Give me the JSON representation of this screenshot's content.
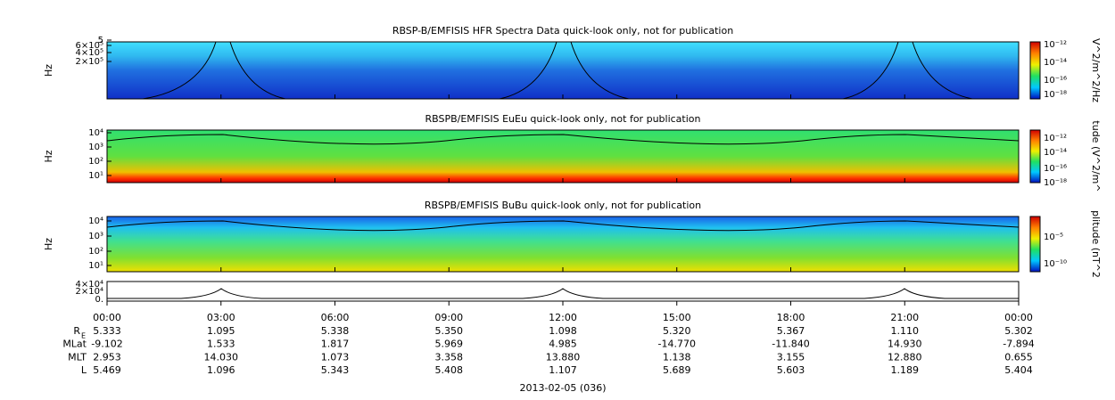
{
  "panels": [
    {
      "title": "RBSP-B/EMFISIS  HFR Spectra Data quick-look only, not for publication",
      "y_label": "Hz",
      "y_ticks": [
        "5",
        "6×10⁵",
        "4×10⁵",
        "2×10⁵"
      ],
      "colorbar_label": "V^2/m^2/Hz",
      "colorbar_ticks": [
        "10⁻¹²",
        "10⁻¹⁴",
        "10⁻¹⁶",
        "10⁻¹⁸"
      ]
    },
    {
      "title": "RBSPB/EMFISIS  EuEu quick-look only, not for publication",
      "y_label": "Hz",
      "y_ticks": [
        "10⁴",
        "10³",
        "10²",
        "10¹"
      ],
      "colorbar_label": "tude (V^2/m^",
      "colorbar_ticks": [
        "10⁻¹²",
        "10⁻¹⁴",
        "10⁻¹⁶",
        "10⁻¹⁸"
      ]
    },
    {
      "title": "RBSPB/EMFISIS  BuBu quick-look only, not for publication",
      "y_label": "Hz",
      "y_ticks": [
        "10⁴",
        "10³",
        "10²",
        "10¹"
      ],
      "colorbar_label": "plitude (nT^2",
      "colorbar_ticks": [
        "10⁻⁵",
        "10⁻¹⁰"
      ]
    }
  ],
  "line_panel": {
    "y_ticks": [
      "4×10⁴",
      "2×10⁴",
      "0."
    ]
  },
  "x_ticks": [
    "00:00",
    "03:00",
    "06:00",
    "09:00",
    "12:00",
    "15:00",
    "18:00",
    "21:00",
    "00:00"
  ],
  "ephemeris": [
    {
      "label": "R",
      "label_sub": "E",
      "values": [
        "5.333",
        "1.095",
        "5.338",
        "5.350",
        "1.098",
        "5.320",
        "5.367",
        "1.110",
        "5.302"
      ]
    },
    {
      "label": "MLat",
      "values": [
        "-9.102",
        "1.533",
        "1.817",
        "5.969",
        "4.985",
        "-14.770",
        "-11.840",
        "14.930",
        "-7.894"
      ]
    },
    {
      "label": "MLT",
      "values": [
        "2.953",
        "14.030",
        "1.073",
        "3.358",
        "13.880",
        "1.138",
        "3.155",
        "12.880",
        "0.655"
      ]
    },
    {
      "label": "L",
      "values": [
        "5.469",
        "1.096",
        "5.343",
        "5.408",
        "1.107",
        "5.689",
        "5.603",
        "1.189",
        "5.404"
      ]
    }
  ],
  "date": "2013-02-05 (036)"
}
